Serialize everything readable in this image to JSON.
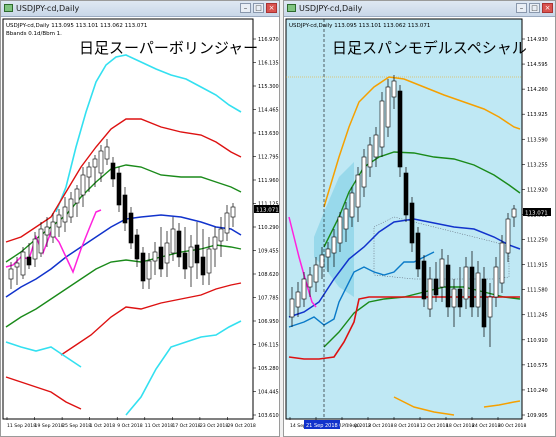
{
  "left": {
    "window_title": "USDJPY-cd,Daily",
    "info_line1": "USDJPY-cd,Daily  113.095 113.101 113.062 113.071",
    "info_line2": "Bbands 0.1d/Bbm 1.",
    "overlay_title": "日足スーパーボリンジャー",
    "y_ticks": [
      "116.970",
      "116.135",
      "115.300",
      "114.465",
      "113.630",
      "112.795",
      "111.960",
      "111.125",
      "110.290",
      "109.455",
      "108.620",
      "107.785",
      "106.950",
      "106.115",
      "105.280",
      "104.445",
      "103.610"
    ],
    "current_price": "113.071",
    "x_ticks": [
      "11 Sep 2018",
      "19 Sep 2018",
      "25 Sep 2018",
      "1 Oct 2018",
      "9 Oct 2018",
      "11 Oct 2018",
      "17 Oct 2018",
      "23 Oct 2018",
      "29 Oct 2018"
    ],
    "colors": {
      "cyan": "#33e0f0",
      "red": "#dd1111",
      "green": "#1a8a1a",
      "blue": "#1133cc",
      "magenta": "#ff22dd"
    }
  },
  "right": {
    "window_title": "USDJPY-cd,Daily",
    "info_line1": "USDJPY-cd,Daily  113.095 113.101 113.062 113.071",
    "overlay_title": "日足スパンモデルスペシャル",
    "y_ticks": [
      "114.930",
      "114.595",
      "114.260",
      "113.925",
      "113.590",
      "113.255",
      "112.920",
      "112.585",
      "112.250",
      "111.915",
      "111.580",
      "111.245",
      "110.910",
      "110.575",
      "110.240",
      "109.905"
    ],
    "current_price": "113.071",
    "x_ticks": [
      "14 Sep 2018",
      "21 Sep 2018 09:00",
      "26 Sep 2018",
      "2 Oct 2018",
      "8 Oct 2018",
      "12 Oct 2018",
      "18 Oct 2018",
      "24 Oct 2018",
      "30 Oct 2018"
    ],
    "highlight_label": "21 Sep 2018 09:00",
    "colors": {
      "orange": "#f5a000",
      "green": "#1a8a1a",
      "blue": "#1133cc",
      "red": "#dd1111",
      "magenta": "#ff22dd",
      "cloud": "#bfe8f4",
      "cloud_dark": "#8fd4e8"
    }
  }
}
